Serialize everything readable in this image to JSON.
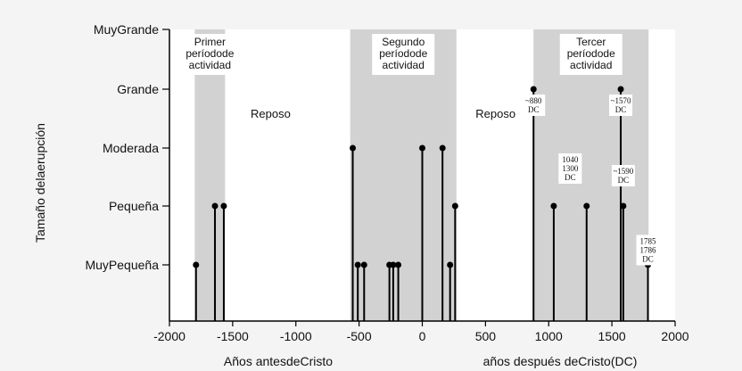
{
  "chart_data": {
    "type": "scatter",
    "subtype": "stem",
    "xlabel_left": "Años antesdeCristo",
    "xlabel_right": "años después deCristo(DC)",
    "ylabel": "Tamaño delaerupción",
    "xlim": [
      -2000,
      2000
    ],
    "xticks": [
      -2000,
      -1500,
      -1000,
      -500,
      0,
      500,
      1000,
      1500,
      2000
    ],
    "categories": [
      "MuyPequeña",
      "Pequeña",
      "Moderada",
      "Grande",
      "MuyGrande"
    ],
    "periods": [
      {
        "label": [
          "Primer",
          "períodode",
          "actividad"
        ],
        "start": -1800,
        "end": -1560
      },
      {
        "label": [
          "Segundo",
          "períodode",
          "actividad"
        ],
        "start": -570,
        "end": 270
      },
      {
        "label": [
          "Tercer",
          "períodode",
          "actividad"
        ],
        "start": 880,
        "end": 1790
      }
    ],
    "rest_labels": [
      {
        "text": "Reposo",
        "x": -1200
      },
      {
        "text": "Reposo",
        "x": 580
      }
    ],
    "points": [
      {
        "x": -1790,
        "size": 0
      },
      {
        "x": -1640,
        "size": 1
      },
      {
        "x": -1570,
        "size": 1
      },
      {
        "x": -550,
        "size": 2
      },
      {
        "x": -510,
        "size": 0
      },
      {
        "x": -460,
        "size": 0
      },
      {
        "x": -260,
        "size": 0
      },
      {
        "x": -230,
        "size": 0
      },
      {
        "x": -190,
        "size": 0
      },
      {
        "x": 0,
        "size": 2
      },
      {
        "x": 160,
        "size": 2
      },
      {
        "x": 220,
        "size": 0
      },
      {
        "x": 260,
        "size": 1
      },
      {
        "x": 880,
        "size": 3
      },
      {
        "x": 1040,
        "size": 1
      },
      {
        "x": 1300,
        "size": 1
      },
      {
        "x": 1570,
        "size": 3
      },
      {
        "x": 1590,
        "size": 1
      },
      {
        "x": 1785,
        "size": 0
      }
    ],
    "annotations": [
      {
        "lines": [
          "~880",
          "DC"
        ],
        "x": 880,
        "size": 3
      },
      {
        "lines": [
          "~1570",
          "DC"
        ],
        "x": 1570,
        "size": 3
      },
      {
        "lines": [
          "1040",
          "1300",
          "DC"
        ],
        "x": 1170,
        "size": 2
      },
      {
        "lines": [
          "~1590",
          "DC"
        ],
        "x": 1590,
        "size": 1.8
      },
      {
        "lines": [
          "1785",
          "1786",
          "DC"
        ],
        "x": 1785,
        "size": 0.6
      }
    ]
  }
}
